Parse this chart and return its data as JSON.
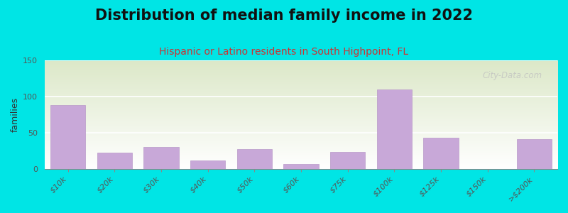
{
  "title": "Distribution of median family income in 2022",
  "subtitle": "Hispanic or Latino residents in South Highpoint, FL",
  "ylabel": "families",
  "categories": [
    "$10k",
    "$20k",
    "$30k",
    "$40k",
    "$50k",
    "$60k",
    "$75k",
    "$100k",
    "$125k",
    "$150k",
    ">$200k"
  ],
  "values": [
    88,
    22,
    30,
    11,
    27,
    6,
    23,
    110,
    43,
    0,
    41
  ],
  "ylim": [
    0,
    150
  ],
  "yticks": [
    0,
    50,
    100,
    150
  ],
  "bar_color": "#c8a8d8",
  "bar_edgecolor": "#b898c8",
  "background_color": "#00e5e5",
  "plot_bg_gradient_top": "#dce8c8",
  "plot_bg_gradient_bottom": "#ffffff",
  "watermark": "City-Data.com",
  "title_fontsize": 15,
  "subtitle_fontsize": 10,
  "ylabel_fontsize": 9,
  "tick_fontsize": 8
}
